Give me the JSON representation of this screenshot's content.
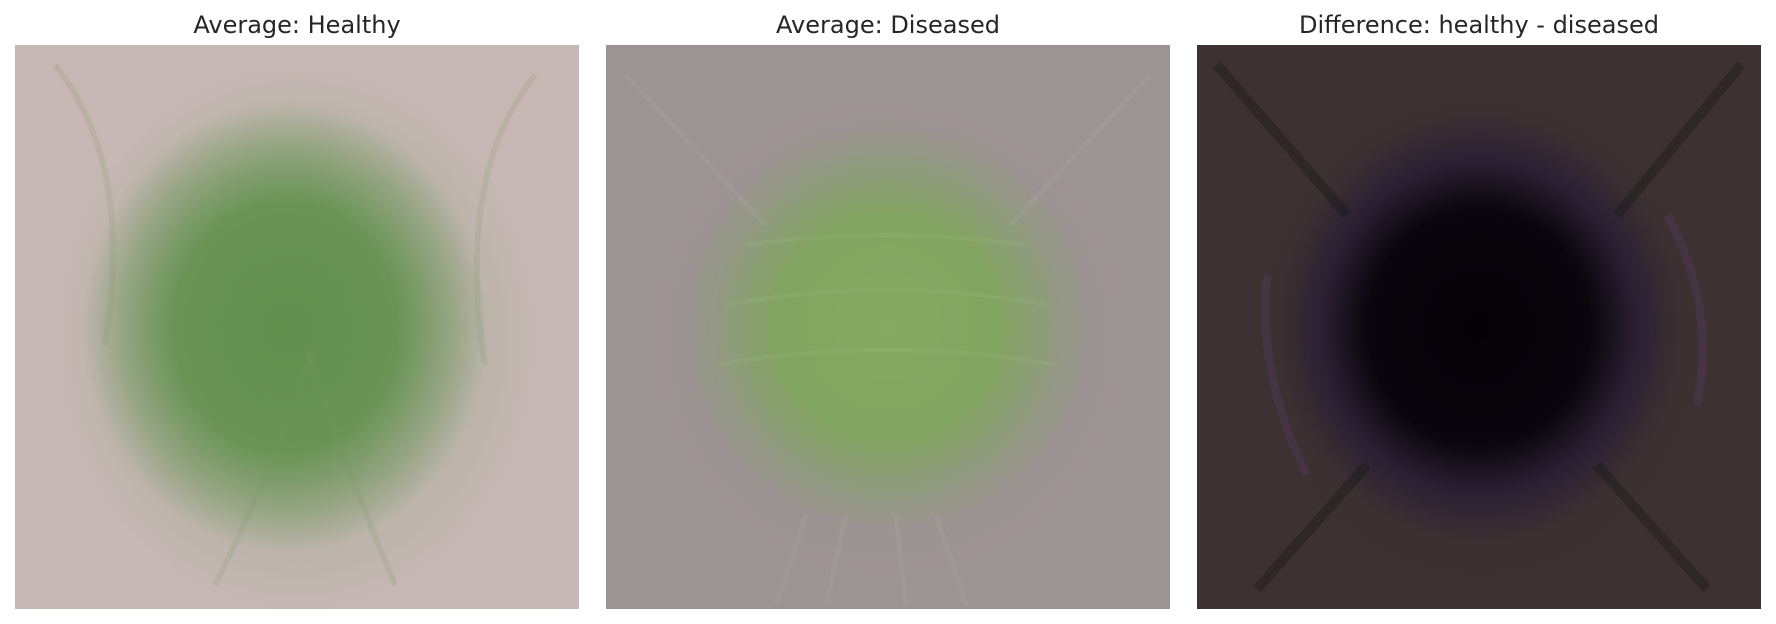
{
  "panels": [
    {
      "title": "Average: Healthy"
    },
    {
      "title": "Average: Diseased"
    },
    {
      "title": "Difference: healthy - diseased"
    }
  ]
}
